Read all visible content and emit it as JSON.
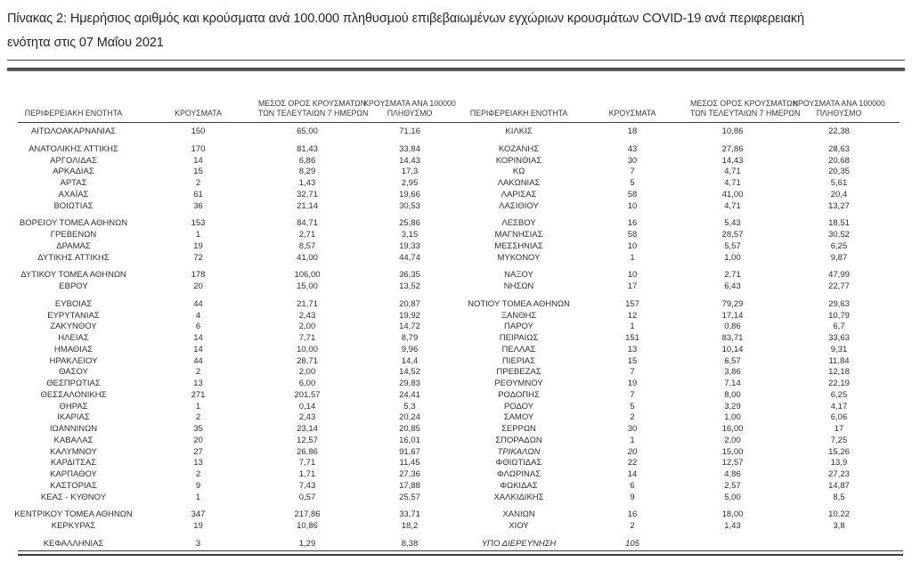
{
  "title": {
    "lines": [
      "Πίνακας 2:  Ημερήσιος αριθμός και κρούσματα ανά 100.000 πληθυσμού επιβεβαιωμένων εγχώριων κρουσμάτων COVID-19 ανά περιφερειακή",
      "ενότητα στις 07 Μαΐου 2021"
    ]
  },
  "header": {
    "region": "ΠΕΡΙΦΕΡΕΙΑΚΗ ΕΝΟΤΗΤΑ",
    "cases": "ΚΡΟΥΣΜΑΤΑ",
    "avg7_l1": "ΜΕΣΟΣ ΟΡΟΣ ΚΡΟΥΣΜΑΤΩΝ",
    "avg7_l2": "ΤΩΝ ΤΕΛΕΥΤΑΙΩΝ 7 ΗΜΕΡΩΝ",
    "per100k_l1": "ΚΡΟΥΣΜΑΤΑ ΑΝΑ 100000",
    "per100k_l2": "ΠΛΗΘΥΣΜΟ"
  },
  "colors": {
    "title_text": "#1f2534",
    "body_text": "#303030",
    "rule": "#3a3a3a"
  },
  "table": {
    "row_groups": [
      {
        "left": [
          {
            "n": "ΑΙΤΩΛΟΑΚΑΡΝΑΝΙΑΣ",
            "c": "150",
            "a": "65,00",
            "p": "71,16"
          }
        ],
        "right": [
          {
            "n": "ΚΙΛΚΙΣ",
            "c": "18",
            "a": "10,86",
            "p": "22,38"
          }
        ]
      },
      {
        "left": [
          {
            "n": "ΑΝΑΤΟΛΙΚΗΣ ΑΤΤΙΚΗΣ",
            "c": "170",
            "a": "81,43",
            "p": "33,84"
          },
          {
            "n": "ΑΡΓΟΛΙΔΑΣ",
            "c": "14",
            "a": "6,86",
            "p": "14,43"
          },
          {
            "n": "ΑΡΚΑΔΙΑΣ",
            "c": "15",
            "a": "8,29",
            "p": "17,3"
          },
          {
            "n": "ΑΡΤΑΣ",
            "c": "2",
            "a": "1,43",
            "p": "2,95"
          },
          {
            "n": "ΑΧΑΪΑΣ",
            "c": "61",
            "a": "32,71",
            "p": "19,66"
          },
          {
            "n": "ΒΟΙΩΤΙΑΣ",
            "c": "36",
            "a": "21,14",
            "p": "30,53"
          }
        ],
        "right": [
          {
            "n": "ΚΟΖΑΝΗΣ",
            "c": "43",
            "a": "27,86",
            "p": "28,63"
          },
          {
            "n": "ΚΟΡΙΝΘΙΑΣ",
            "c": "30",
            "a": "14,43",
            "p": "20,68"
          },
          {
            "n": "ΚΩ",
            "c": "7",
            "a": "4,71",
            "p": "20,35"
          },
          {
            "n": "ΛΑΚΩΝΙΑΣ",
            "c": "5",
            "a": "4,71",
            "p": "5,61"
          },
          {
            "n": "ΛΑΡΙΣΑΣ",
            "c": "58",
            "a": "41,00",
            "p": "20,4"
          },
          {
            "n": "ΛΑΣΙΘΙΟΥ",
            "c": "10",
            "a": "4,71",
            "p": "13,27"
          }
        ]
      },
      {
        "left": [
          {
            "n": "ΒΟΡΕΙΟΥ ΤΟΜΕΑ ΑΘΗΝΩΝ",
            "c": "153",
            "a": "84,71",
            "p": "25,86"
          },
          {
            "n": "ΓΡΕΒΕΝΩΝ",
            "c": "1",
            "a": "2,71",
            "p": "3,15"
          },
          {
            "n": "ΔΡΑΜΑΣ",
            "c": "19",
            "a": "8,57",
            "p": "19,33"
          },
          {
            "n": "ΔΥΤΙΚΗΣ ΑΤΤΙΚΗΣ",
            "c": "72",
            "a": "41,00",
            "p": "44,74"
          }
        ],
        "right": [
          {
            "n": "ΛΕΣΒΟΥ",
            "c": "16",
            "a": "5,43",
            "p": "18,51"
          },
          {
            "n": "ΜΑΓΝΗΣΙΑΣ",
            "c": "58",
            "a": "28,57",
            "p": "30,52"
          },
          {
            "n": "ΜΕΣΣΗΝΙΑΣ",
            "c": "10",
            "a": "5,57",
            "p": "6,25"
          },
          {
            "n": "ΜΥΚΟΝΟΥ",
            "c": "1",
            "a": "1,00",
            "p": "9,87"
          }
        ]
      },
      {
        "left": [
          {
            "n": "ΔΥΤΙΚΟΥ ΤΟΜΕΑ ΑΘΗΝΩΝ",
            "c": "178",
            "a": "106,00",
            "p": "36,35"
          },
          {
            "n": "ΕΒΡΟΥ",
            "c": "20",
            "a": "15,00",
            "p": "13,52"
          }
        ],
        "right": [
          {
            "n": "ΝΑΞΟΥ",
            "c": "10",
            "a": "2,71",
            "p": "47,99"
          },
          {
            "n": "ΝΗΣΩΝ",
            "c": "17",
            "a": "6,43",
            "p": "22,77"
          }
        ]
      },
      {
        "left": [
          {
            "n": "ΕΥΒΟΙΑΣ",
            "c": "44",
            "a": "21,71",
            "p": "20,87"
          },
          {
            "n": "ΕΥΡΥΤΑΝΙΑΣ",
            "c": "4",
            "a": "2,43",
            "p": "19,92"
          },
          {
            "n": "ΖΑΚΥΝΘΟΥ",
            "c": "6",
            "a": "2,00",
            "p": "14,72"
          },
          {
            "n": "ΗΛΕΙΑΣ",
            "c": "14",
            "a": "7,71",
            "p": "8,79"
          },
          {
            "n": "ΗΜΑΘΙΑΣ",
            "c": "14",
            "a": "10,00",
            "p": "9,96"
          },
          {
            "n": "ΗΡΑΚΛΕΙΟΥ",
            "c": "44",
            "a": "28,71",
            "p": "14,4"
          },
          {
            "n": "ΘΑΣΟΥ",
            "c": "2",
            "a": "2,00",
            "p": "14,52"
          },
          {
            "n": "ΘΕΣΠΡΩΤΙΑΣ",
            "c": "13",
            "a": "6,00",
            "p": "29,83"
          },
          {
            "n": "ΘΕΣΣΑΛΟΝΙΚΗΣ",
            "c": "271",
            "a": "201,57",
            "p": "24,41"
          },
          {
            "n": "ΘΗΡΑΣ",
            "c": "1",
            "a": "0,14",
            "p": "5,3"
          },
          {
            "n": "ΙΚΑΡΙΑΣ",
            "c": "2",
            "a": "2,43",
            "p": "20,24"
          },
          {
            "n": "ΙΩΑΝΝΙΝΩΝ",
            "c": "35",
            "a": "23,14",
            "p": "20,85"
          },
          {
            "n": "ΚΑΒΑΛΑΣ",
            "c": "20",
            "a": "12,57",
            "p": "16,01"
          },
          {
            "n": "ΚΑΛΥΜΝΟΥ",
            "c": "27",
            "a": "26,86",
            "p": "91,67"
          },
          {
            "n": "ΚΑΡΔΙΤΣΑΣ",
            "c": "13",
            "a": "7,71",
            "p": "11,45"
          },
          {
            "n": "ΚΑΡΠΑΘΟΥ",
            "c": "2",
            "a": "1,71",
            "p": "27,36"
          },
          {
            "n": "ΚΑΣΤΟΡΙΑΣ",
            "c": "9",
            "a": "7,43",
            "p": "17,88"
          },
          {
            "n": "ΚΕΑΣ - ΚΥΘΝΟΥ",
            "c": "1",
            "a": "0,57",
            "p": "25,57"
          }
        ],
        "right": [
          {
            "n": "ΝΟΤΙΟΥ ΤΟΜΕΑ ΑΘΗΝΩΝ",
            "c": "157",
            "a": "79,29",
            "p": "29,63"
          },
          {
            "n": "ΞΑΝΘΗΣ",
            "c": "12",
            "a": "17,14",
            "p": "10,79"
          },
          {
            "n": "ΠΑΡΟΥ",
            "c": "1",
            "a": "0,86",
            "p": "6,7"
          },
          {
            "n": "ΠΕΙΡΑΙΩΣ",
            "c": "151",
            "a": "83,71",
            "p": "33,63"
          },
          {
            "n": "ΠΕΛΛΑΣ",
            "c": "13",
            "a": "10,14",
            "p": "9,31"
          },
          {
            "n": "ΠΙΕΡΙΑΣ",
            "c": "15",
            "a": "6,57",
            "p": "11,84"
          },
          {
            "n": "ΠΡΕΒΕΖΑΣ",
            "c": "7",
            "a": "3,86",
            "p": "12,18"
          },
          {
            "n": "ΡΕΘΥΜΝΟΥ",
            "c": "19",
            "a": "7,14",
            "p": "22,19"
          },
          {
            "n": "ΡΟΔΟΠΗΣ",
            "c": "7",
            "a": "8,00",
            "p": "6,25"
          },
          {
            "n": "ΡΟΔΟΥ",
            "c": "5",
            "a": "3,29",
            "p": "4,17"
          },
          {
            "n": "ΣΑΜΟΥ",
            "c": "2",
            "a": "1,00",
            "p": "6,06"
          },
          {
            "n": "ΣΕΡΡΩΝ",
            "c": "30",
            "a": "16,00",
            "p": "17"
          },
          {
            "n": "ΣΠΟΡΑΔΩΝ",
            "c": "1",
            "a": "2,00",
            "p": "7,25"
          },
          {
            "n": "ΤΡΙΚΑΛΩΝ",
            "c": "20",
            "a": "15,00",
            "p": "15,26",
            "it": true
          },
          {
            "n": "ΦΘΙΩΤΙΔΑΣ",
            "c": "22",
            "a": "12,57",
            "p": "13,9"
          },
          {
            "n": "ΦΛΩΡΙΝΑΣ",
            "c": "14",
            "a": "4,86",
            "p": "27,23"
          },
          {
            "n": "ΦΩΚΙΔΑΣ",
            "c": "6",
            "a": "2,57",
            "p": "14,87"
          },
          {
            "n": "ΧΑΛΚΙΔΙΚΗΣ",
            "c": "9",
            "a": "5,00",
            "p": "8,5"
          }
        ]
      },
      {
        "left": [
          {
            "n": "ΚΕΝΤΡΙΚΟΥ ΤΟΜΕΑ ΑΘΗΝΩΝ",
            "c": "347",
            "a": "217,86",
            "p": "33,71"
          },
          {
            "n": "ΚΕΡΚΥΡΑΣ",
            "c": "19",
            "a": "10,86",
            "p": "18,2"
          }
        ],
        "right": [
          {
            "n": "ΧΑΝΙΩΝ",
            "c": "16",
            "a": "18,00",
            "p": "10,22"
          },
          {
            "n": "ΧΙΟΥ",
            "c": "2",
            "a": "1,43",
            "p": "3,8"
          }
        ]
      },
      {
        "left": [
          {
            "n": "ΚΕΦΑΛΛΗΝΙΑΣ",
            "c": "3",
            "a": "1,29",
            "p": "8,38"
          }
        ],
        "right": [
          {
            "n": "ΥΠΟ ΔΙΕΡΕΥΝΗΣΗ",
            "c": "105",
            "a": "",
            "p": "",
            "it": true
          }
        ]
      }
    ]
  }
}
